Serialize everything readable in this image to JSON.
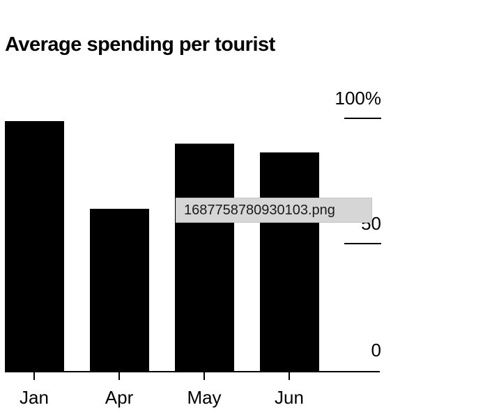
{
  "chart_data": {
    "type": "bar",
    "title": "Average spending per tourist",
    "categories": [
      "Jan",
      "Apr",
      "May",
      "Jun"
    ],
    "values": [
      100,
      65,
      91,
      87.5
    ],
    "ylim": [
      0,
      100
    ],
    "y_ticks": [
      {
        "value": 100,
        "label": "100%"
      },
      {
        "value": 50,
        "label": "50"
      },
      {
        "value": 0,
        "label": "0"
      }
    ],
    "y_axis_side": "right",
    "grid": false,
    "legend": "none",
    "bar_color": "#000000"
  },
  "tooltip": {
    "text": "1687758780930103.png"
  }
}
